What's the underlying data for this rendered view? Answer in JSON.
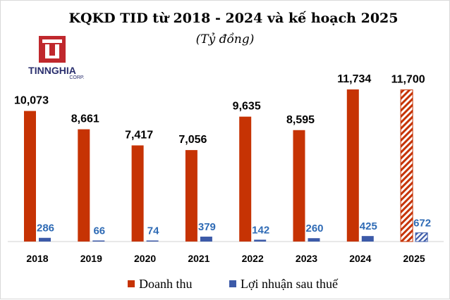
{
  "logo": {
    "name": "TINNGHIA",
    "suffix": "CORP.",
    "brand_color": "#c0282d",
    "text_color": "#2a2f6e"
  },
  "chart_data": {
    "type": "bar",
    "title": "KQKD TID từ 2018 - 2024 và kế hoạch 2025",
    "subtitle": "(Tỷ đồng)",
    "categories": [
      "2018",
      "2019",
      "2020",
      "2021",
      "2022",
      "2023",
      "2024",
      "2025"
    ],
    "series": [
      {
        "name": "Doanh thu",
        "values": [
          10073,
          8661,
          7417,
          7056,
          9635,
          8595,
          11734,
          11700
        ],
        "labels": [
          "10,073",
          "8,661",
          "7,417",
          "7,056",
          "9,635",
          "8,595",
          "11,734",
          "11,700"
        ],
        "color": "#c63304"
      },
      {
        "name": "Lợi nhuận sau thuế",
        "values": [
          286,
          66,
          74,
          379,
          142,
          260,
          425,
          672
        ],
        "labels": [
          "286",
          "66",
          "74",
          "379",
          "142",
          "260",
          "425",
          "672"
        ],
        "color": "#3c5aa8",
        "label_color": "#2f6bb5"
      }
    ],
    "planned_categories": [
      "2025"
    ],
    "ylim": [
      0,
      12500
    ],
    "grid": false,
    "legend": "bottom"
  }
}
